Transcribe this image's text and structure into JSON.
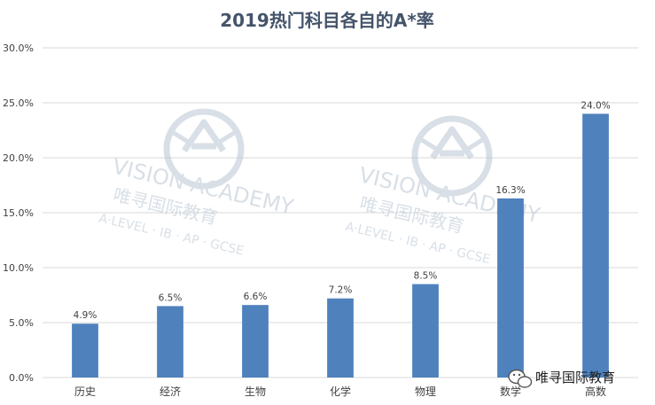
{
  "chart_data": {
    "type": "bar",
    "title": "2019热门科目各自的A*率",
    "categories": [
      "历史",
      "经济",
      "生物",
      "化学",
      "物理",
      "数学",
      "高数"
    ],
    "values": [
      4.9,
      6.5,
      6.6,
      7.2,
      8.5,
      16.3,
      24.0
    ],
    "data_labels": [
      "4.9%",
      "6.5%",
      "6.6%",
      "7.2%",
      "8.5%",
      "16.3%",
      "24.0%"
    ],
    "ylim": [
      0,
      30
    ],
    "yticks": [
      0,
      5,
      10,
      15,
      20,
      25,
      30
    ],
    "ytick_labels": [
      "0.0%",
      "5.0%",
      "10.0%",
      "15.0%",
      "20.0%",
      "25.0%",
      "30.0%"
    ],
    "xlabel": "",
    "ylabel": "",
    "grid": true,
    "bar_color": "#4F81BD"
  },
  "watermark": {
    "brand": "VISION ACADEMY",
    "chinese": "唯寻国际教育",
    "subtitle": "A·LEVEL · IB · AP · GCSE"
  },
  "footer": {
    "label": "唯寻国际教育",
    "icon": "wechat-icon"
  }
}
